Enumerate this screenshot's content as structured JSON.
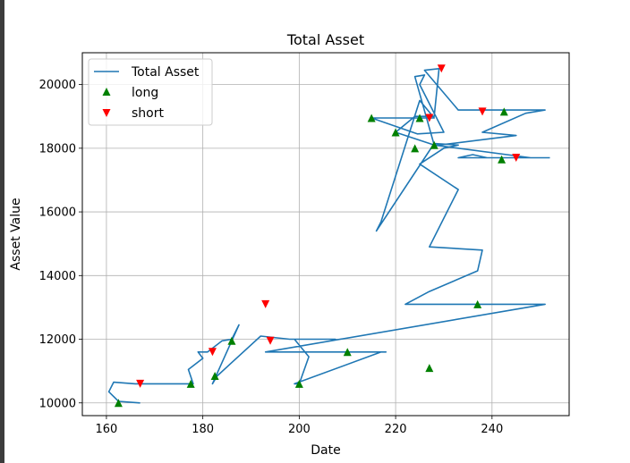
{
  "chart_data": {
    "type": "line",
    "title": "Total Asset",
    "xlabel": "Date",
    "ylabel": "Asset Value",
    "xlim": [
      155,
      256
    ],
    "ylim": [
      9600,
      21000
    ],
    "xticks": [
      160,
      180,
      200,
      220,
      240
    ],
    "yticks": [
      10000,
      12000,
      14000,
      16000,
      18000,
      20000
    ],
    "grid": true,
    "legend_position": "top-left",
    "colors": {
      "line": "#1f77b4",
      "long": "#008000",
      "short": "#ff0000",
      "grid": "#b0b0b0"
    },
    "series": [
      {
        "name": "Total Asset",
        "marker": "line",
        "x": [
          167,
          162.5,
          160.5,
          161.5,
          166,
          169,
          172,
          176,
          178,
          177,
          180,
          179,
          181,
          184,
          186,
          187.5,
          182,
          183,
          192,
          198,
          207.5,
          199,
          202,
          200,
          199,
          217,
          218,
          193,
          251,
          222,
          227,
          237,
          238,
          227,
          233,
          225,
          230,
          233,
          228,
          216,
          217,
          225,
          228,
          215,
          224.5,
          230,
          225,
          226,
          224,
          228,
          220,
          224,
          228,
          229,
          226,
          233,
          236,
          237,
          251,
          247,
          238,
          245,
          229,
          228,
          248,
          235,
          233,
          236,
          239,
          240,
          252
        ],
        "y": [
          10000,
          10050,
          10350,
          10650,
          10600,
          10600,
          10600,
          10600,
          10600,
          11050,
          11400,
          11600,
          11600,
          11950,
          12000,
          12450,
          10600,
          10850,
          12100,
          12000,
          12000,
          12000,
          11450,
          10600,
          10600,
          11600,
          11600,
          11600,
          13100,
          13100,
          13500,
          14150,
          14800,
          14900,
          16700,
          17500,
          18000,
          18100,
          18150,
          15400,
          15700,
          19500,
          18950,
          18950,
          18450,
          18500,
          20000,
          20300,
          20250,
          18100,
          18500,
          19000,
          19000,
          20500,
          20450,
          19200,
          19200,
          19200,
          19200,
          19100,
          18500,
          18400,
          18100,
          18100,
          17700,
          17700,
          17700,
          17800,
          17700,
          17700,
          17700
        ]
      },
      {
        "name": "long",
        "marker": "triangle-up",
        "x": [
          162.5,
          177.5,
          182.5,
          186,
          200,
          210,
          215,
          220,
          224,
          225,
          227,
          228,
          237,
          242,
          242.5
        ],
        "y": [
          10000,
          10600,
          10850,
          11950,
          10600,
          11600,
          18950,
          18500,
          18000,
          18950,
          11100,
          18100,
          13100,
          17650,
          19150
        ]
      },
      {
        "name": "short",
        "marker": "triangle-down",
        "x": [
          167,
          182,
          193,
          194,
          227,
          229.5,
          238,
          245
        ],
        "y": [
          10600,
          11600,
          13100,
          11950,
          18950,
          20500,
          19150,
          17700
        ]
      }
    ]
  }
}
